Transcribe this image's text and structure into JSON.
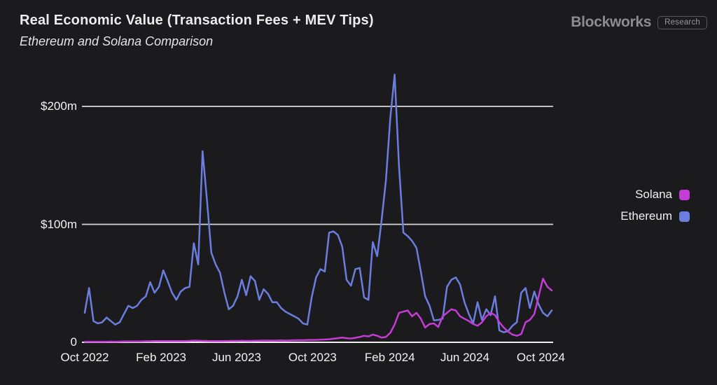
{
  "branding": {
    "wordmark": "Blockworks",
    "badge": "Research"
  },
  "chart_data": {
    "type": "line",
    "title": "Real Economic Value (Transaction Fees + MEV Tips)",
    "subtitle": "Ethereum and Solana Comparison",
    "x_axis": {
      "tick_labels": [
        "Oct 2022",
        "Feb 2023",
        "Jun 2023",
        "Oct 2023",
        "Feb 2024",
        "Jun 2024",
        "Oct 2024"
      ],
      "tick_weeks": [
        0,
        17.5,
        34.8,
        52.2,
        69.9,
        87.1,
        104.5
      ],
      "range_weeks": [
        0,
        107
      ],
      "note_visible": false
    },
    "y_axis": {
      "ticks": [
        {
          "label": "$200m",
          "value": 200,
          "gridline": true
        },
        {
          "label": "$100m",
          "value": 100,
          "gridline": true
        },
        {
          "label": "0",
          "value": 0,
          "gridline": false
        }
      ],
      "axis_line_value": 0,
      "max_plotted_value": 227
    },
    "legend": {
      "position": "right",
      "order": [
        "Solana",
        "Ethereum"
      ]
    },
    "grid_color": "#d6d6d6",
    "axis_color": "#ededed",
    "background_color": "#1b1b1d",
    "series": [
      {
        "name": "Ethereum",
        "color": "#6b7dde",
        "values": [
          25,
          46,
          18,
          16,
          17,
          21,
          18,
          15,
          17,
          24,
          31,
          29,
          31,
          36,
          39,
          51,
          42,
          47,
          61,
          52,
          42,
          36,
          43,
          46,
          47,
          84,
          66,
          162,
          121,
          76,
          66,
          59,
          42,
          28,
          31,
          39,
          53,
          40,
          56,
          52,
          36,
          45,
          41,
          34,
          34,
          29,
          26,
          24,
          22,
          20,
          16,
          15,
          38,
          55,
          62,
          60,
          93,
          94,
          91,
          81,
          53,
          48,
          62,
          63,
          38,
          36,
          85,
          73,
          103,
          137,
          190,
          227,
          150,
          93,
          90,
          86,
          80,
          60,
          39,
          31,
          18.5,
          19,
          20,
          47,
          53,
          55,
          49,
          34,
          24,
          16,
          34,
          19,
          28,
          23,
          39,
          10,
          8.5,
          9.5,
          14,
          17,
          42,
          46,
          29,
          43,
          32,
          25,
          22,
          27
        ]
      },
      {
        "name": "Solana",
        "color": "#c43bd6",
        "values": [
          0.4,
          0.4,
          0.5,
          0.4,
          0.5,
          0.5,
          0.6,
          0.5,
          0.6,
          0.7,
          0.7,
          0.7,
          0.8,
          0.8,
          0.9,
          0.9,
          1,
          1,
          1,
          1,
          1,
          1,
          1,
          1,
          1.2,
          1.5,
          1.3,
          1.2,
          1.1,
          1,
          1,
          1,
          1,
          1.1,
          1.2,
          1.2,
          1.3,
          1.2,
          1.2,
          1.3,
          1.4,
          1.5,
          1.5,
          1.4,
          1.5,
          1.6,
          1.5,
          1.6,
          1.7,
          1.8,
          1.8,
          1.9,
          2,
          2,
          2.2,
          2.4,
          2.6,
          3,
          3.5,
          4,
          3.5,
          3.2,
          3.8,
          4.5,
          5.5,
          5,
          6.5,
          5.5,
          4,
          4.5,
          8,
          15,
          25,
          26,
          27,
          22,
          25,
          20,
          12.5,
          15.5,
          16,
          13,
          22,
          25,
          28,
          27,
          22,
          20,
          18,
          15.5,
          14,
          17,
          22,
          25,
          23,
          17,
          12.5,
          9,
          6.5,
          5.5,
          7,
          17,
          19,
          24,
          39,
          54,
          47,
          44
        ]
      }
    ]
  }
}
